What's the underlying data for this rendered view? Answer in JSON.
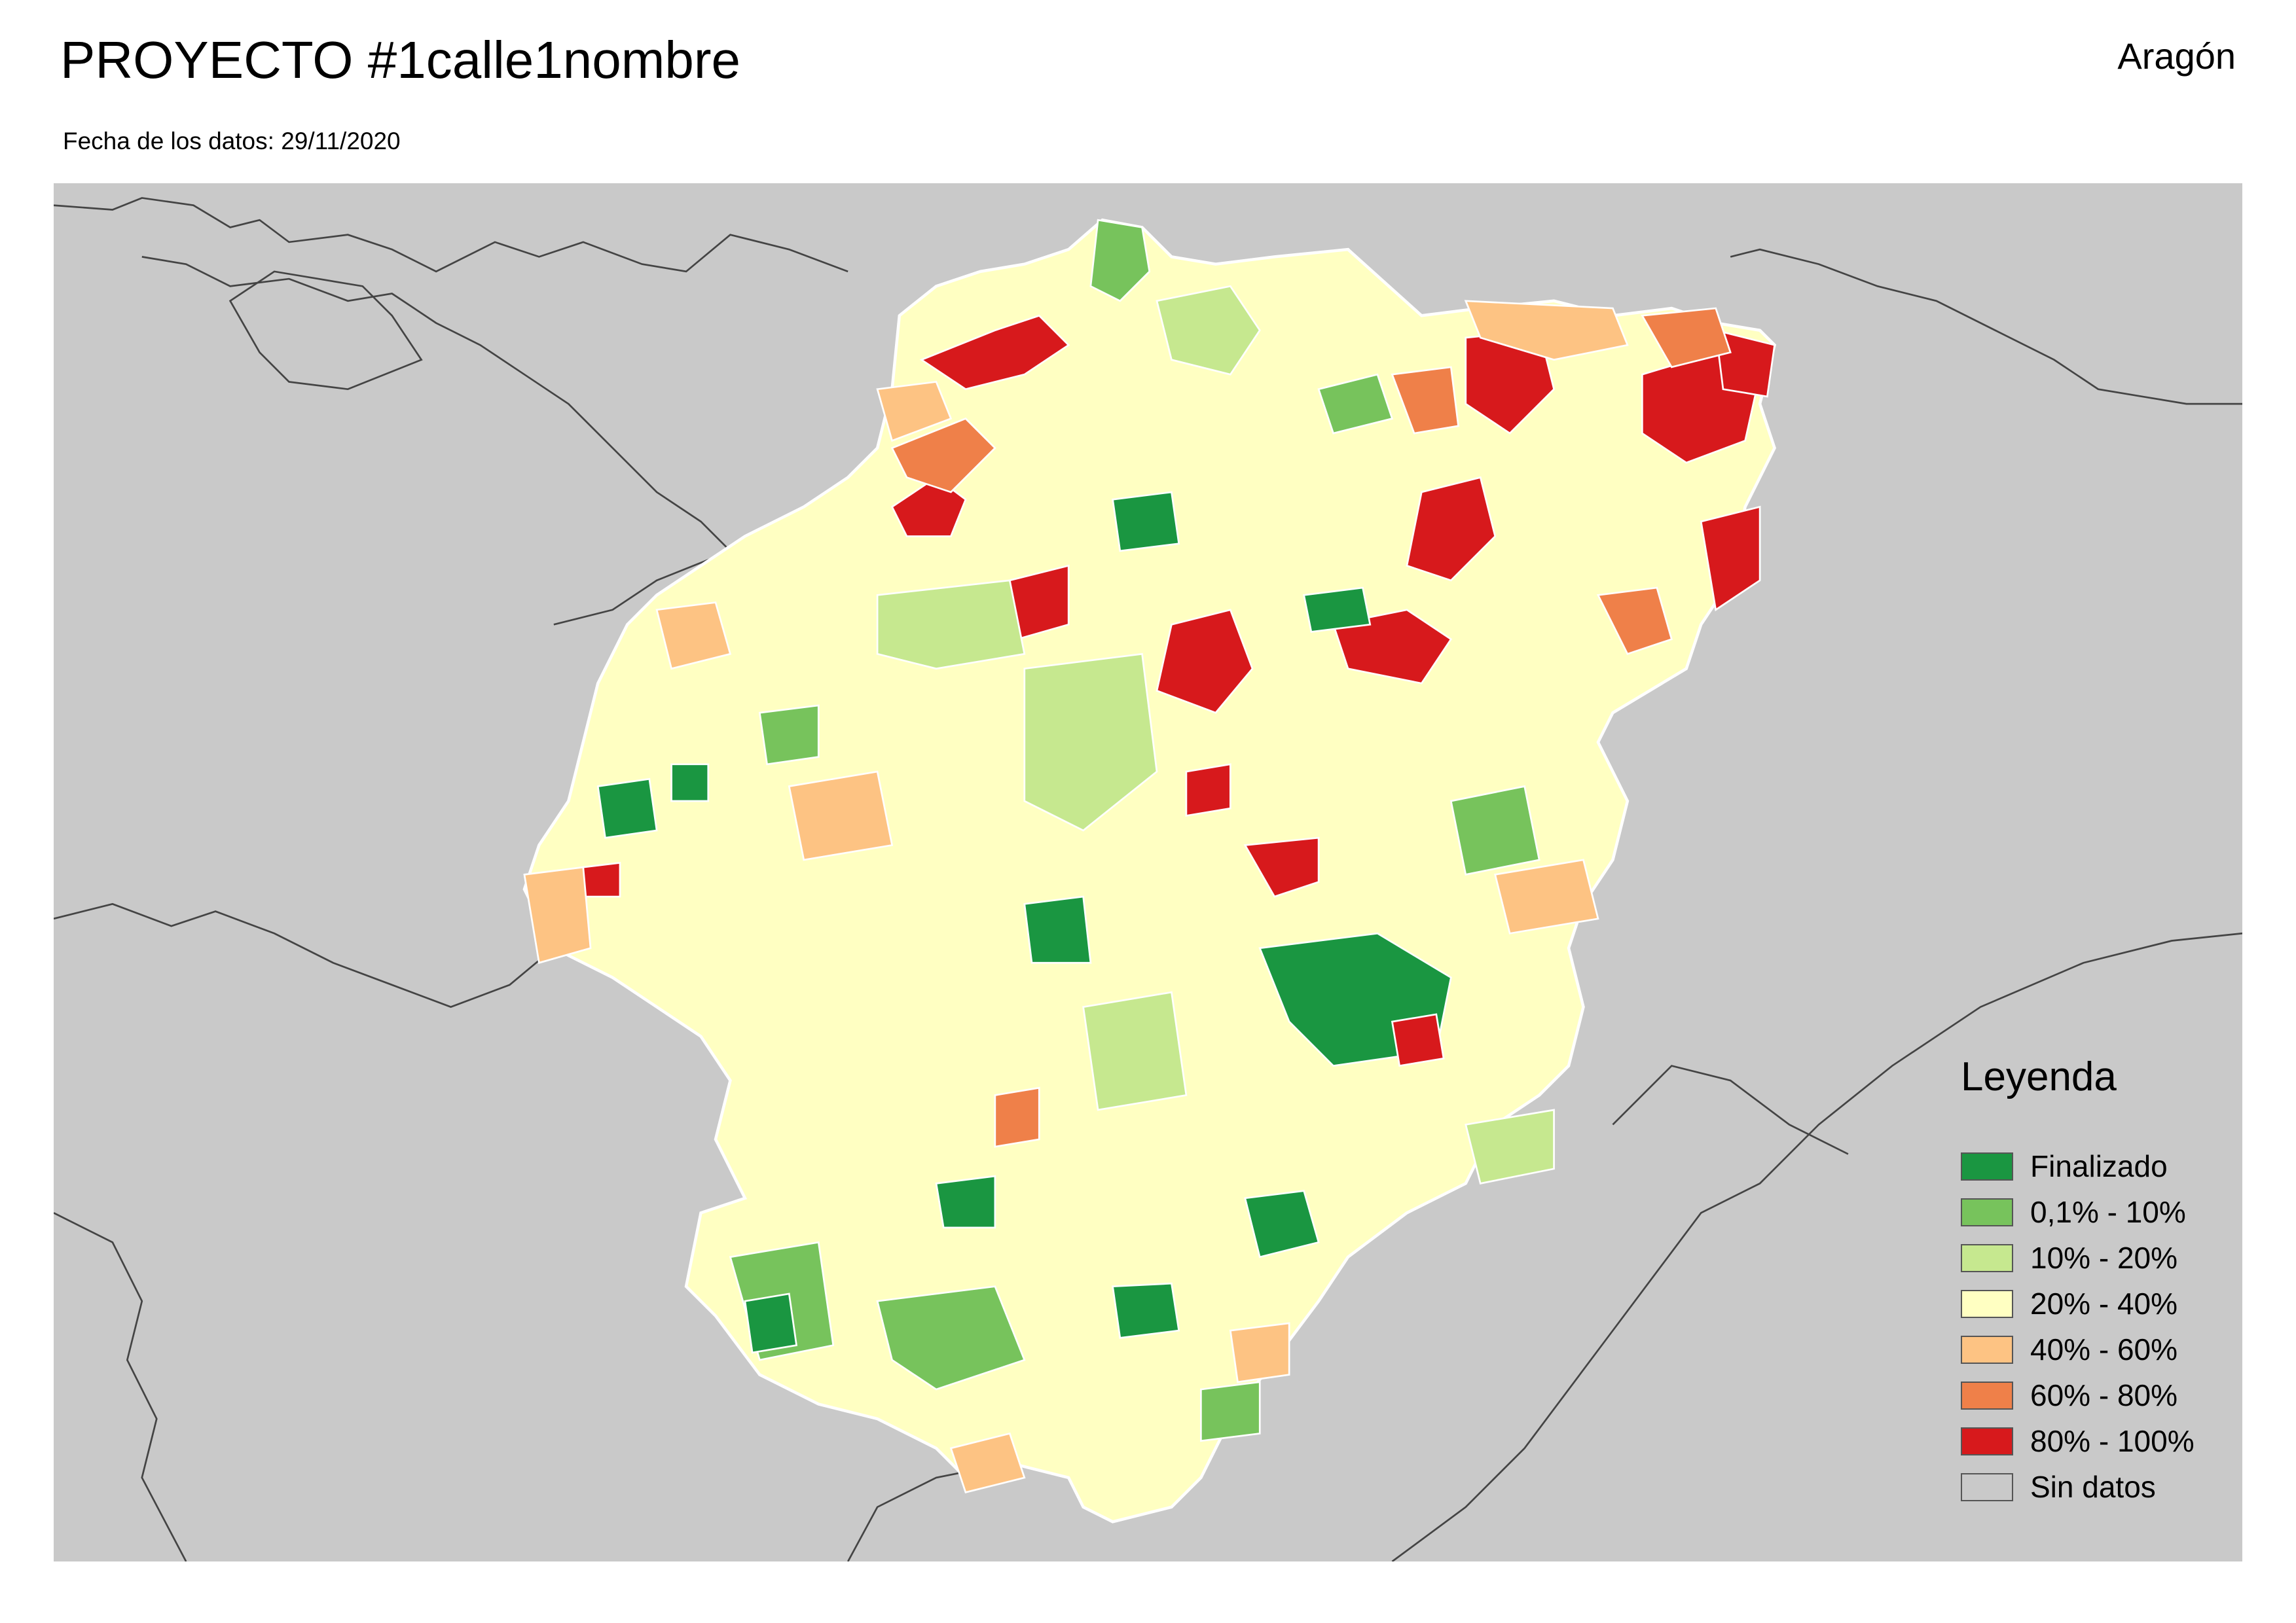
{
  "header": {
    "title": "PROYECTO #1calle1nombre",
    "date_line": "Fecha de los datos: 29/11/2020",
    "region": "Aragón"
  },
  "legend": {
    "title": "Leyenda",
    "items": [
      {
        "label": "Finalizado",
        "color": "#1a9641"
      },
      {
        "label": "0,1% - 10%",
        "color": "#77c35c"
      },
      {
        "label": "10% - 20%",
        "color": "#c6e88f"
      },
      {
        "label": "20% - 40%",
        "color": "#ffffc2"
      },
      {
        "label": "40% - 60%",
        "color": "#fdc383"
      },
      {
        "label": "60% - 80%",
        "color": "#ef8049"
      },
      {
        "label": "80% - 100%",
        "color": "#d7191c"
      },
      {
        "label": "Sin datos",
        "color": "#c9c9c9"
      }
    ]
  },
  "map": {
    "background_color": "#c9c9c9",
    "border_color": "#444444",
    "municipality_stroke": "#ffffff",
    "land_color": "#ffffc2"
  }
}
